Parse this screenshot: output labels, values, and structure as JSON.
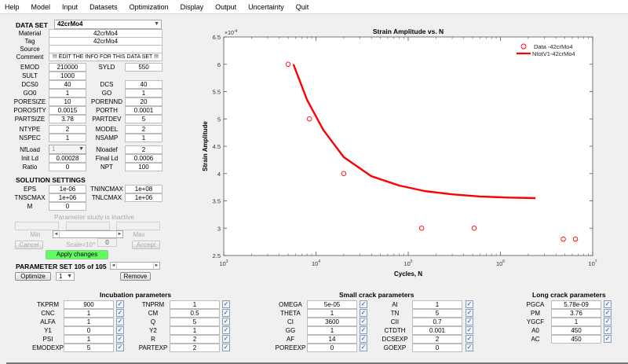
{
  "menu": [
    "Help",
    "Model",
    "Input",
    "Datasets",
    "Optimization",
    "Display",
    "Output",
    "Uncertainty",
    "Quit"
  ],
  "dataset": {
    "header": "DATA SET",
    "selected": "42crMo4",
    "material_label": "Material",
    "material": "42crMo4",
    "tag_label": "Tag",
    "tag": "42crMo4",
    "source_label": "Source",
    "source": "",
    "comment_label": "Comment",
    "comment": "!!! EDIT THE INFO FOR THIS DATA SET !!!",
    "fields": [
      {
        "l1": "EMOD",
        "v1": "210000",
        "l2": "SYLD",
        "v2": "550"
      },
      {
        "l1": "SULT",
        "v1": "1000",
        "l2": "",
        "v2": null
      },
      {
        "l1": "DCS0",
        "v1": "40",
        "l2": "DCS",
        "v2": "40"
      },
      {
        "l1": "GO0",
        "v1": "1",
        "l2": "GO",
        "v2": "1"
      },
      {
        "l1": "PORESIZE",
        "v1": "10",
        "l2": "PORENND",
        "v2": "20"
      },
      {
        "l1": "POROSITY",
        "v1": "0.0015",
        "l2": "PORTH",
        "v2": "0.0001"
      },
      {
        "l1": "PARTSIZE",
        "v1": "3.78",
        "l2": "PARTDEV",
        "v2": "5"
      }
    ],
    "ntype_label": "NTYPE",
    "ntype": "2",
    "model_label": "MODEL",
    "model": "2",
    "nspec_label": "NSPEC",
    "nspec": "1",
    "nsamp_label": "NSAMP",
    "nsamp": "1",
    "nfload_label": "NfLoad",
    "nfload": "1",
    "nloadef_label": "Nloadef",
    "nloadef": "2",
    "initld_label": "Init Ld",
    "initld": "0.00028",
    "finalld_label": "Final Ld",
    "finalld": "0.0006",
    "ratio_label": "Ratio",
    "ratio": "0",
    "npt_label": "NPT",
    "npt": "100"
  },
  "solution": {
    "header": "SOLUTION SETTINGS",
    "eps_label": "EPS",
    "eps": "1e-06",
    "tnincmax_label": "TNINCMAX",
    "tnincmax": "1e+08",
    "tnscmax_label": "TNSCMAX",
    "tnscmax": "1e+06",
    "tnlcmax_label": "TNLCMAX",
    "tnlcmax": "1e+06",
    "m_label": "M",
    "m": "0"
  },
  "param_study": {
    "status": "Parameter study is inactive",
    "min_label": "Min",
    "max_label": "Max",
    "cancel": "Cancel",
    "scale_label": "Scale=10^",
    "scale": "0",
    "accept": "Accept",
    "apply": "Apply changes"
  },
  "param_set": {
    "label": "PARAMETER SET 105 of 105",
    "optimize": "Optimize",
    "opt_select": "1",
    "remove": "Remove"
  },
  "incubation": {
    "header": "Incubation parameters",
    "rows": [
      {
        "l1": "TKPRM",
        "v1": "900",
        "l2": "TNPRM",
        "v2": "1"
      },
      {
        "l1": "CNC",
        "v1": "1",
        "l2": "CM",
        "v2": "0.5"
      },
      {
        "l1": "ALFA",
        "v1": "1",
        "l2": "Q",
        "v2": "5"
      },
      {
        "l1": "Y1",
        "v1": "0",
        "l2": "Y2",
        "v2": "1"
      },
      {
        "l1": "PSI",
        "v1": "1",
        "l2": "R",
        "v2": "2"
      },
      {
        "l1": "EMODEXP",
        "v1": "5",
        "l2": "PARTEXP",
        "v2": "2"
      }
    ]
  },
  "small_crack": {
    "header": "Small crack parameters",
    "rows": [
      {
        "l1": "OMEGA",
        "v1": "5e-05",
        "l2": "AI",
        "v2": "1"
      },
      {
        "l1": "THETA",
        "v1": "1",
        "l2": "TN",
        "v2": "5"
      },
      {
        "l1": "CI",
        "v1": "3600",
        "l2": "CII",
        "v2": "0.7"
      },
      {
        "l1": "GG",
        "v1": "1",
        "l2": "CTDTH",
        "v2": "0.001"
      },
      {
        "l1": "AF",
        "v1": "14",
        "l2": "DCSEXP",
        "v2": "2"
      },
      {
        "l1": "POREEXP",
        "v1": "0",
        "l2": "GOEXP",
        "v2": "0"
      }
    ]
  },
  "long_crack": {
    "header": "Long crack parameters",
    "rows": [
      {
        "l": "PGCA",
        "v": "5.78e-09"
      },
      {
        "l": "PM",
        "v": "3.76"
      },
      {
        "l": "YGCF",
        "v": "1"
      },
      {
        "l": "A0",
        "v": "450"
      },
      {
        "l": "AC",
        "v": "450"
      }
    ]
  },
  "checkmark": "✓",
  "chart_data": {
    "type": "scatter",
    "title": "Strain Amplitude vs. N",
    "xlabel": "Cycles, N",
    "ylabel": "Strain Amplitude",
    "xscale": "log",
    "xlim": [
      1000,
      10000000
    ],
    "ylim": [
      2.5,
      6.5
    ],
    "y_multiplier": "×10^-4",
    "xticks": [
      "10^3",
      "10^4",
      "10^5",
      "10^6",
      "10^7"
    ],
    "yticks": [
      "2.5",
      "3",
      "3.5",
      "4",
      "4.5",
      "5",
      "5.5",
      "6",
      "6.5"
    ],
    "legend_position": "top-right",
    "series": [
      {
        "name": "Data -42crMo4",
        "marker": "circle",
        "color": "#ff0000",
        "x": [
          5000,
          8500,
          20000,
          140000,
          520000,
          4800000,
          6500000
        ],
        "y": [
          6.0,
          5.0,
          4.0,
          3.0,
          3.0,
          2.8,
          2.8
        ]
      },
      {
        "name": "NtotV1-42crMo4",
        "marker": "line",
        "color": "#ff0000",
        "x": [
          5700,
          8000,
          12000,
          20000,
          40000,
          80000,
          150000,
          300000,
          600000,
          1200000,
          2400000
        ],
        "y": [
          6.0,
          5.35,
          4.8,
          4.3,
          3.95,
          3.78,
          3.68,
          3.62,
          3.58,
          3.56,
          3.55
        ]
      }
    ]
  }
}
